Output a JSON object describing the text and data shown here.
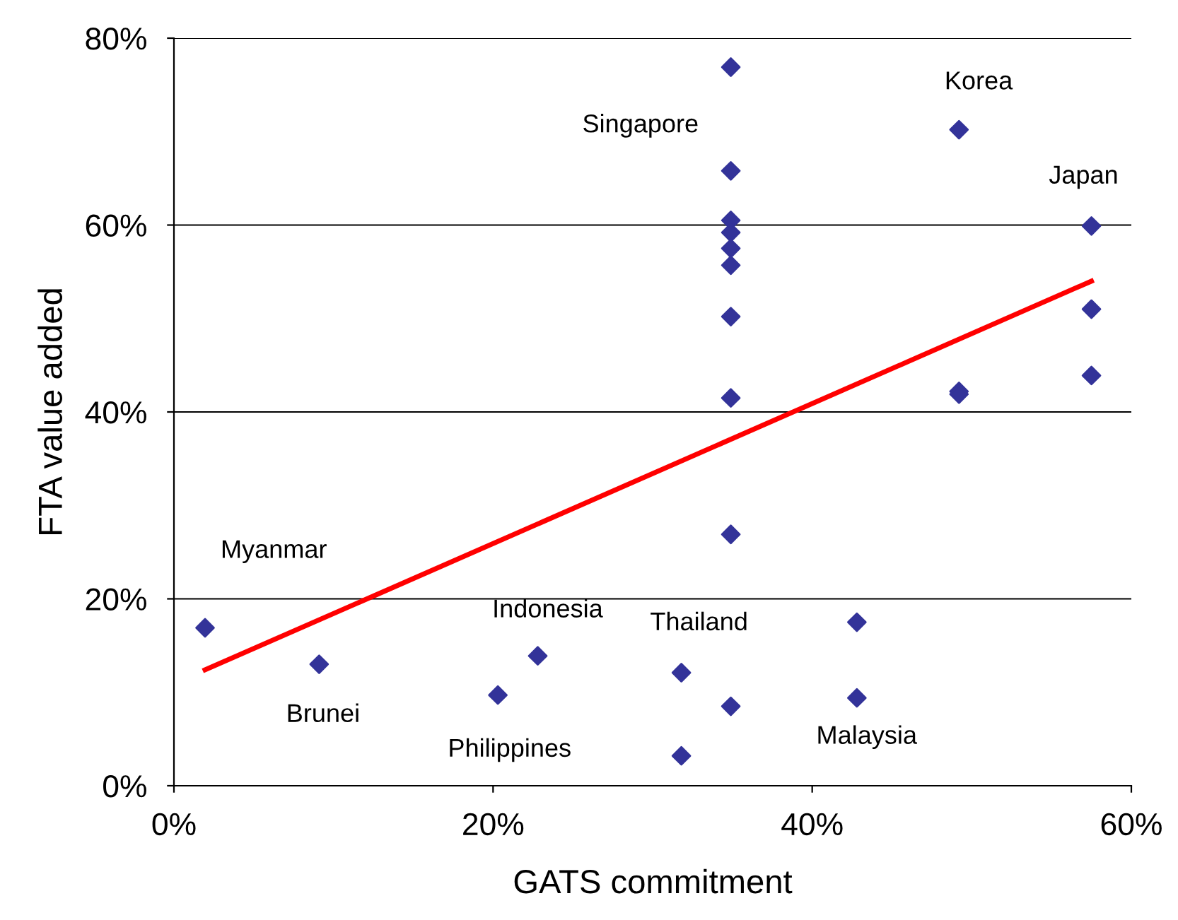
{
  "chart_data": {
    "type": "scatter",
    "xlabel": "GATS commitment",
    "ylabel": "FTA value added",
    "xlim": [
      0,
      60
    ],
    "ylim": [
      0,
      80
    ],
    "xticks": [
      {
        "value": 0,
        "label": "0%"
      },
      {
        "value": 20,
        "label": "20%"
      },
      {
        "value": 40,
        "label": "40%"
      },
      {
        "value": 60,
        "label": "60%"
      }
    ],
    "yticks": [
      {
        "value": 0,
        "label": "0%"
      },
      {
        "value": 20,
        "label": "20%"
      },
      {
        "value": 40,
        "label": "40%"
      },
      {
        "value": 60,
        "label": "60%"
      },
      {
        "value": 80,
        "label": "80%"
      }
    ],
    "grid": "y",
    "series": [
      {
        "marker": "diamond",
        "color": "#333399",
        "x": [
          1.95,
          9.1,
          20.3,
          22.8,
          31.8,
          31.8,
          34.9,
          34.9,
          34.9,
          34.9,
          34.9,
          34.9,
          34.9,
          34.9,
          34.9,
          34.9,
          42.8,
          42.8,
          49.2,
          49.2,
          49.2,
          57.5,
          57.5,
          57.5
        ],
        "values": [
          16.9,
          13.0,
          9.7,
          13.9,
          12.1,
          3.2,
          76.9,
          65.8,
          60.5,
          59.2,
          57.5,
          55.7,
          50.2,
          41.5,
          26.9,
          8.5,
          17.5,
          9.4,
          70.2,
          42.2,
          41.9,
          59.9,
          51.0,
          43.9
        ]
      },
      {
        "type": "line",
        "color": "#ff0000",
        "x": [
          1.95,
          57.5
        ],
        "values": [
          12.4,
          54.0
        ]
      }
    ],
    "annotations": [
      {
        "text": "Myanmar",
        "x": 1.95,
        "y": 16.9
      },
      {
        "text": "Brunei",
        "x": 9.1,
        "y": 13.0
      },
      {
        "text": "Philippines",
        "x": 20.3,
        "y": 9.7
      },
      {
        "text": "Indonesia",
        "x": 22.8,
        "y": 13.9
      },
      {
        "text": "Thailand",
        "x": 31.8,
        "y": 12.1
      },
      {
        "text": "Singapore",
        "x": 34.9,
        "y": 65.8
      },
      {
        "text": "Malaysia",
        "x": 42.8,
        "y": 9.4
      },
      {
        "text": "Korea",
        "x": 49.2,
        "y": 70.2
      },
      {
        "text": "Japan",
        "x": 57.5,
        "y": 59.9
      }
    ]
  }
}
